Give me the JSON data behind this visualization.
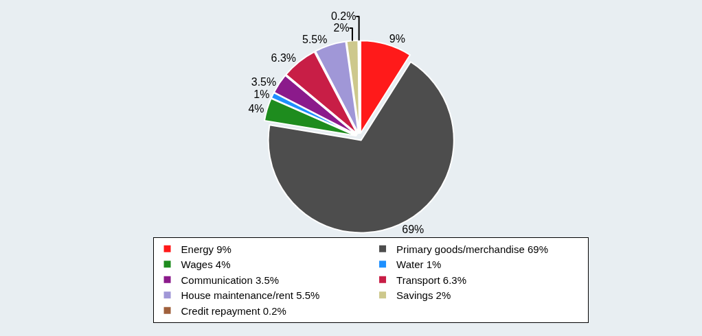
{
  "chart_data": {
    "type": "pie",
    "categories": [
      "Energy",
      "Primary goods/merchandise",
      "Wages",
      "Water",
      "Communication",
      "Transport",
      "House maintenance/rent",
      "Savings",
      "Credit repayment"
    ],
    "values": [
      9,
      69,
      4,
      1,
      3.5,
      6.3,
      5.5,
      2,
      0.2
    ],
    "value_labels": [
      "9%",
      "69%",
      "4%",
      "1%",
      "3.5%",
      "6.3%",
      "5.5%",
      "2%",
      "0.2%"
    ],
    "colors": [
      "#ff1a1a",
      "#4d4d4d",
      "#1e8c1e",
      "#1e90ff",
      "#8b1a8b",
      "#c81e46",
      "#a097d7",
      "#cdc88c",
      "#a0603c"
    ],
    "legend": "bottom"
  }
}
